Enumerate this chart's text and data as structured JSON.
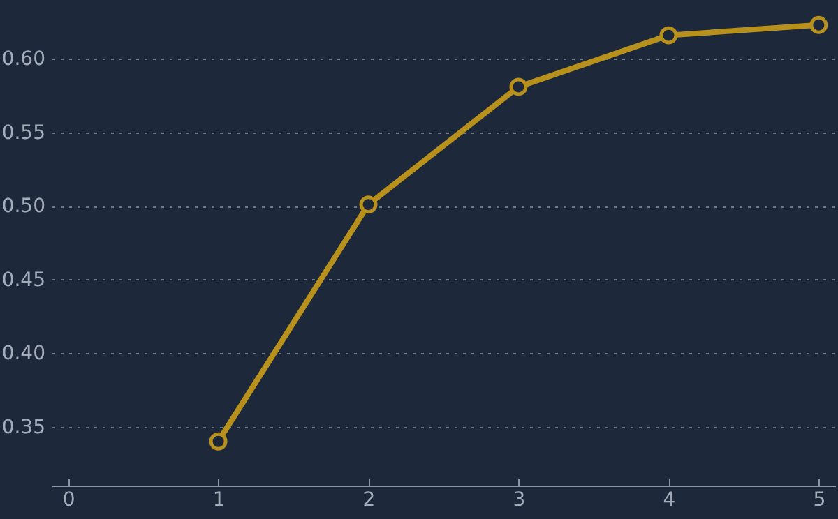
{
  "chart_data": {
    "type": "line",
    "x": [
      1,
      2,
      3,
      4,
      5
    ],
    "series": [
      {
        "color": "#b8901c",
        "values": [
          0.34,
          0.501,
          0.581,
          0.616,
          0.623
        ]
      }
    ],
    "xlim": [
      -0.11,
      5.11
    ],
    "xticks": [
      0,
      1,
      2,
      3,
      4,
      5
    ],
    "ylim": [
      0.31,
      0.64
    ],
    "yticks": [
      {
        "value": 0.35,
        "label": "0.35"
      },
      {
        "value": 0.4,
        "label": "0.40"
      },
      {
        "value": 0.45,
        "label": "0.45"
      },
      {
        "value": 0.5,
        "label": "0.50"
      },
      {
        "value": 0.55,
        "label": "0.55"
      },
      {
        "value": 0.6,
        "label": "0.60"
      }
    ],
    "grid": "y",
    "marker": "circle",
    "line_style": "solid"
  }
}
